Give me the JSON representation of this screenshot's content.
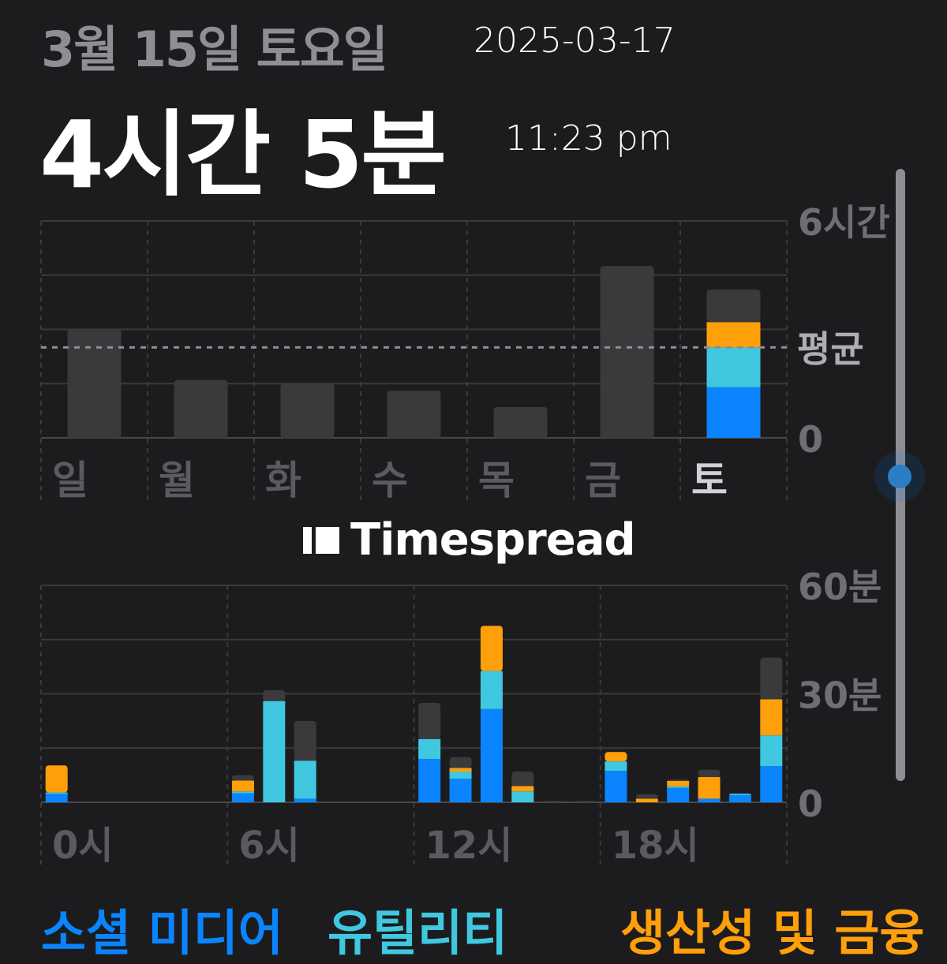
{
  "header": {
    "date": "3월 15일 토요일",
    "total_time": "4시간 5분"
  },
  "overlay": {
    "date_stamp": "2025-03-17",
    "time_stamp": "11:23 pm"
  },
  "watermark": "Timespread",
  "colors": {
    "background": "#1c1c1e",
    "social": "#0a84ff",
    "utility": "#40c8e0",
    "productivity": "#ff9f0a",
    "other": "#3a3a3c"
  },
  "legend": [
    {
      "label": "소셜 미디어",
      "color": "#0a84ff"
    },
    {
      "label": "유틸리티",
      "color": "#40c8e0"
    },
    {
      "label": "생산성 및 금융",
      "color": "#ff9f0a"
    }
  ],
  "chart_data": [
    {
      "type": "bar",
      "stacked": true,
      "categories": [
        "일",
        "월",
        "화",
        "수",
        "목",
        "금",
        "토"
      ],
      "selected": "토",
      "y_unit": "hours",
      "ylim": [
        0,
        6
      ],
      "y_ticks": [
        {
          "value": 6,
          "label": "6시간"
        },
        {
          "value": 0,
          "label": "0"
        }
      ],
      "average": {
        "value": 2.5,
        "label": "평균"
      },
      "grid": true,
      "series": [
        {
          "name": "소셜 미디어",
          "values": [
            0,
            0,
            0,
            0,
            0,
            0,
            1.4
          ]
        },
        {
          "name": "유틸리티",
          "values": [
            0,
            0,
            0,
            0,
            0,
            0,
            1.1
          ]
        },
        {
          "name": "생산성 및 금융",
          "values": [
            0,
            0,
            0,
            0,
            0,
            0,
            0.7
          ]
        },
        {
          "values": [
            3.0,
            1.6,
            1.5,
            1.3,
            0.85,
            4.75,
            0.9
          ]
        }
      ]
    },
    {
      "type": "bar",
      "stacked": true,
      "categories": [
        "0",
        "1",
        "2",
        "3",
        "4",
        "5",
        "6",
        "7",
        "8",
        "9",
        "10",
        "11",
        "12",
        "13",
        "14",
        "15",
        "16",
        "17",
        "18",
        "19",
        "20",
        "21",
        "22",
        "23"
      ],
      "x_tick_labels": [
        {
          "index": 0,
          "label": "0시"
        },
        {
          "index": 6,
          "label": "6시"
        },
        {
          "index": 12,
          "label": "12시"
        },
        {
          "index": 18,
          "label": "18시"
        }
      ],
      "y_unit": "minutes",
      "ylim": [
        0,
        60
      ],
      "y_ticks": [
        {
          "value": 60,
          "label": "60분"
        },
        {
          "value": 30,
          "label": "30분"
        },
        {
          "value": 0,
          "label": "0"
        }
      ],
      "grid": true,
      "series": [
        {
          "name": "소셜 미디어",
          "values": [
            2.5,
            0,
            0,
            0,
            0,
            0,
            2.5,
            0,
            1,
            0,
            0,
            0,
            12,
            6.5,
            25.8,
            0,
            0,
            0,
            8.7,
            0,
            4,
            1,
            2,
            10
          ]
        },
        {
          "name": "유틸리티",
          "values": [
            0.2,
            0,
            0,
            0,
            0,
            0,
            0.5,
            28,
            10.5,
            0,
            0,
            0,
            5.5,
            2,
            10.5,
            3,
            0,
            0,
            2.6,
            0,
            0.4,
            0,
            0.4,
            8.5
          ]
        },
        {
          "name": "생산성 및 금융",
          "values": [
            7.5,
            0,
            0,
            0,
            0,
            0,
            3,
            0,
            0,
            0,
            0,
            0,
            0,
            1,
            12.5,
            1.5,
            0,
            0,
            2.6,
            1,
            1.5,
            6,
            0,
            10
          ]
        },
        {
          "values": [
            0,
            0,
            0,
            0,
            0,
            0,
            1.5,
            3,
            11,
            0,
            0,
            0,
            10,
            3,
            0,
            4,
            0.4,
            0.4,
            0,
            1.2,
            0.4,
            2,
            0,
            11.5
          ]
        }
      ]
    }
  ]
}
